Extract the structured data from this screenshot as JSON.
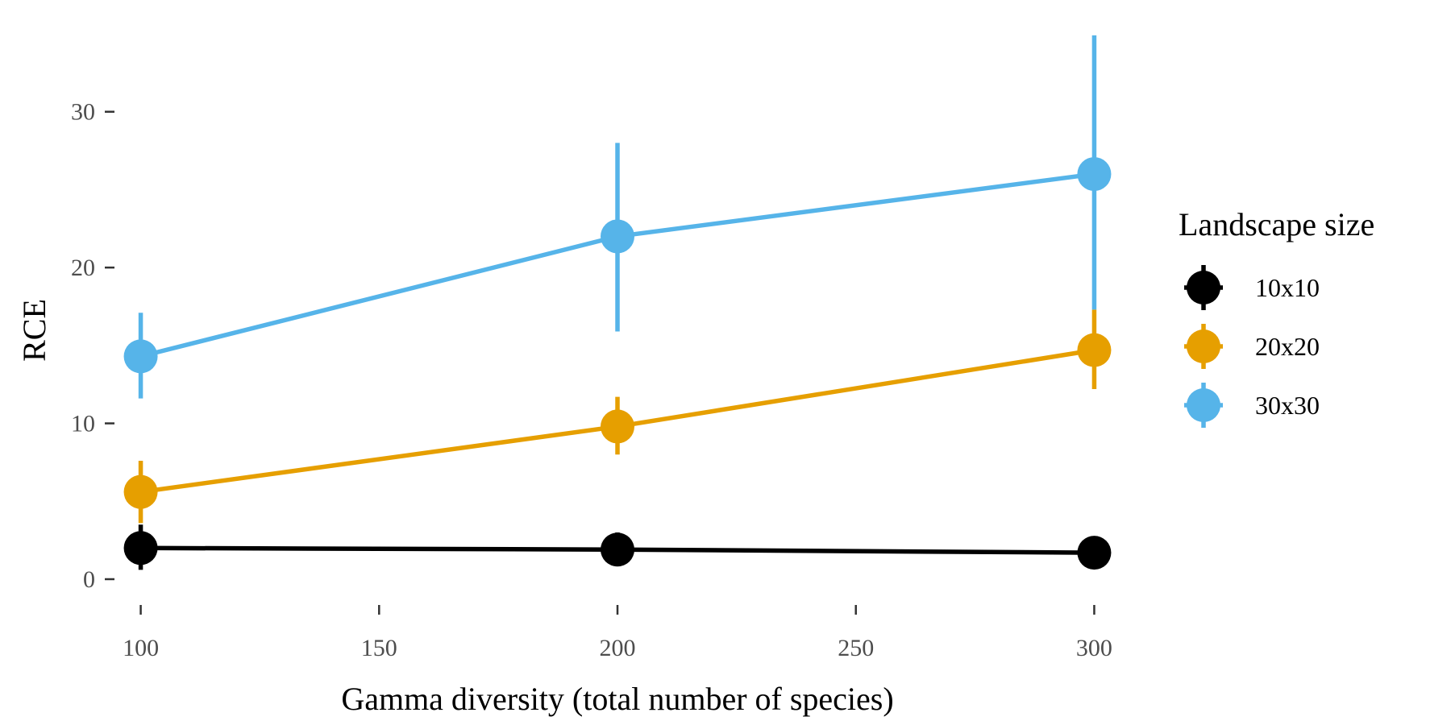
{
  "chart_data": {
    "type": "line",
    "xlabel": "Gamma diversity (total number of species)",
    "ylabel": "RCE",
    "xlim": [
      95,
      305
    ],
    "ylim": [
      -1.5,
      35
    ],
    "x_ticks": [
      100,
      150,
      200,
      250,
      300
    ],
    "y_ticks": [
      0,
      10,
      20,
      30
    ],
    "grid": false,
    "legend": {
      "title": "Landscape size",
      "placement": "right"
    },
    "series": [
      {
        "name": "10x10",
        "color": "#000000",
        "x": [
          100,
          200,
          300
        ],
        "y": [
          2.0,
          1.9,
          1.7
        ],
        "ymin": [
          0.6,
          1.0,
          1.3
        ],
        "ymax": [
          3.5,
          3.0,
          2.1
        ]
      },
      {
        "name": "20x20",
        "color": "#E69F00",
        "x": [
          100,
          200,
          300
        ],
        "y": [
          5.6,
          9.8,
          14.7
        ],
        "ymin": [
          3.6,
          8.0,
          12.2
        ],
        "ymax": [
          7.6,
          11.7,
          17.3
        ]
      },
      {
        "name": "30x30",
        "color": "#56B4E9",
        "x": [
          100,
          200,
          300
        ],
        "y": [
          14.3,
          22.0,
          26.0
        ],
        "ymin": [
          11.6,
          15.9,
          17.3
        ],
        "ymax": [
          17.1,
          28.0,
          34.9
        ]
      }
    ]
  }
}
